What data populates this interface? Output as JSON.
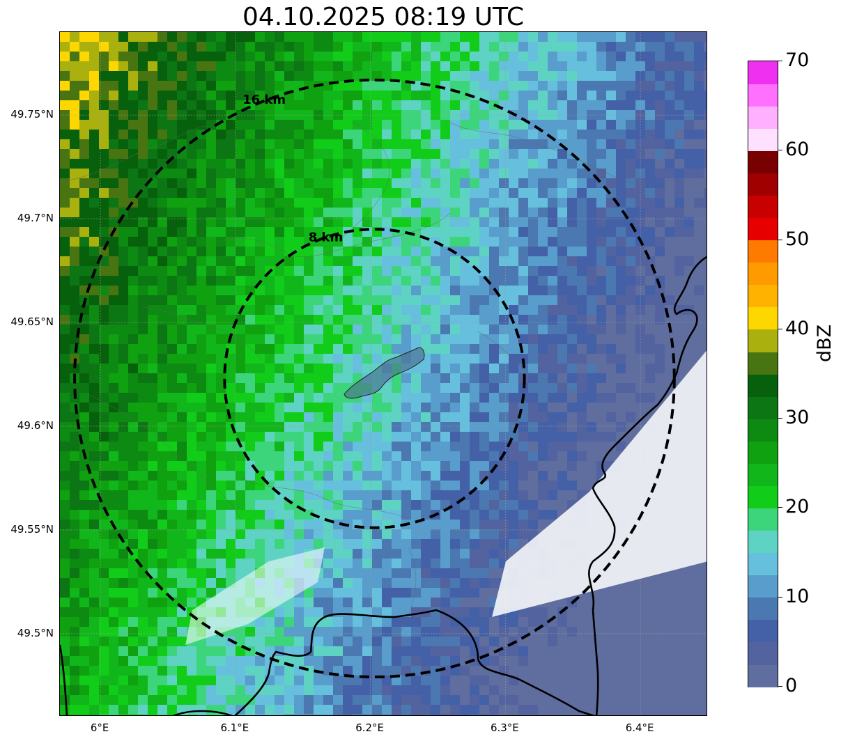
{
  "title": "04.10.2025 08:19 UTC",
  "map": {
    "lat_labels": [
      "49.75°N",
      "49.7°N",
      "49.65°N",
      "49.6°N",
      "49.55°N",
      "49.5°N"
    ],
    "lon_labels": [
      "6°E",
      "6.1°E",
      "6.2°E",
      "6.3°E",
      "6.4°E"
    ],
    "lat_values": [
      49.75,
      49.7,
      49.65,
      49.6,
      49.55,
      49.5
    ],
    "lon_values": [
      6.0,
      6.1,
      6.2,
      6.3,
      6.4
    ],
    "extent": {
      "lon_min": 5.97,
      "lon_max": 6.45,
      "lat_min": 49.46,
      "lat_max": 49.79
    },
    "center": {
      "lon": 6.203,
      "lat": 49.623
    },
    "rings": [
      {
        "radius_km": 16,
        "label": "16 km"
      },
      {
        "radius_km": 8,
        "label": "8 km"
      }
    ]
  },
  "colorbar": {
    "label": "dBZ",
    "ticks": [
      "0",
      "10",
      "20",
      "30",
      "40",
      "50",
      "60",
      "70"
    ],
    "min": 0,
    "max": 70,
    "step": 2.5,
    "colors": [
      "#5f6e9e",
      "#5263a0",
      "#4461a8",
      "#4b78b0",
      "#589dcb",
      "#66bfdd",
      "#5ed3c4",
      "#3dd57b",
      "#12cc1a",
      "#11b61a",
      "#0fa10f",
      "#0d8a12",
      "#0c7514",
      "#07600b",
      "#487511",
      "#aab00d",
      "#ffd700",
      "#ffb300",
      "#ff9a00",
      "#ff7a00",
      "#e60000",
      "#c80000",
      "#a00000",
      "#780000",
      "#ffe0ff",
      "#ffb0ff",
      "#ff70ff",
      "#f030f0"
    ]
  }
}
